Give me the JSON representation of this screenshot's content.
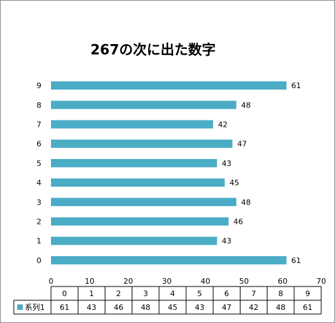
{
  "chart_data": {
    "type": "bar",
    "orientation": "horizontal",
    "title": "267の次に出た数字",
    "categories": [
      "0",
      "1",
      "2",
      "3",
      "4",
      "5",
      "6",
      "7",
      "8",
      "9"
    ],
    "series": [
      {
        "name": "系列1",
        "values": [
          61,
          43,
          46,
          48,
          45,
          43,
          47,
          42,
          48,
          61
        ],
        "color": "#4bacc6"
      }
    ],
    "xlim": [
      0,
      70
    ],
    "xticks": [
      0,
      10,
      20,
      30,
      40,
      50,
      60,
      70
    ],
    "data_labels": true,
    "gridlines": false,
    "data_table": true,
    "legend_in_table": true
  }
}
